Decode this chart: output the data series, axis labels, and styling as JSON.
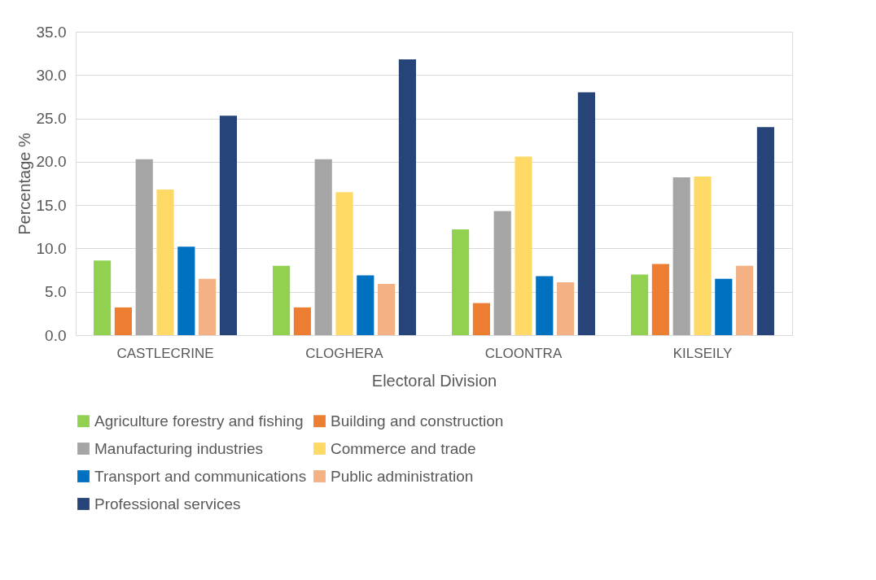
{
  "chart_data": {
    "type": "bar",
    "xlabel": "Electoral Division",
    "ylabel": "Percentage %",
    "categories": [
      "CASTLECRINE",
      "CLOGHERA",
      "CLOONTRA",
      "KILSEILY"
    ],
    "series": [
      {
        "name": "Agriculture forestry and fishing",
        "color": "#92d050",
        "values": [
          8.6,
          8.0,
          12.2,
          7.0
        ]
      },
      {
        "name": "Building and construction",
        "color": "#ed7d31",
        "values": [
          3.2,
          3.2,
          3.7,
          8.2
        ]
      },
      {
        "name": "Manufacturing industries",
        "color": "#a5a5a5",
        "values": [
          20.3,
          20.3,
          14.3,
          18.2
        ]
      },
      {
        "name": "Commerce and trade",
        "color": "#ffd966",
        "values": [
          16.8,
          16.5,
          20.6,
          18.3
        ]
      },
      {
        "name": "Transport and communications",
        "color": "#0070c0",
        "values": [
          10.2,
          6.9,
          6.8,
          6.5
        ]
      },
      {
        "name": "Public administration",
        "color": "#f4b183",
        "values": [
          6.5,
          5.9,
          6.1,
          8.0
        ]
      },
      {
        "name": "Professional services",
        "color": "#264478",
        "values": [
          25.3,
          31.8,
          28.0,
          24.0
        ]
      }
    ],
    "ylim": [
      0,
      35
    ],
    "yticks": [
      {
        "value": 0,
        "label": "0.0"
      },
      {
        "value": 5,
        "label": "5.0"
      },
      {
        "value": 10,
        "label": "10.0"
      },
      {
        "value": 15,
        "label": "15.0"
      },
      {
        "value": 20,
        "label": "20.0"
      },
      {
        "value": 25,
        "label": "25.0"
      },
      {
        "value": 30,
        "label": "30.0"
      },
      {
        "value": 35,
        "label": "35.0"
      }
    ],
    "grid": "y",
    "legend": "bottom"
  }
}
